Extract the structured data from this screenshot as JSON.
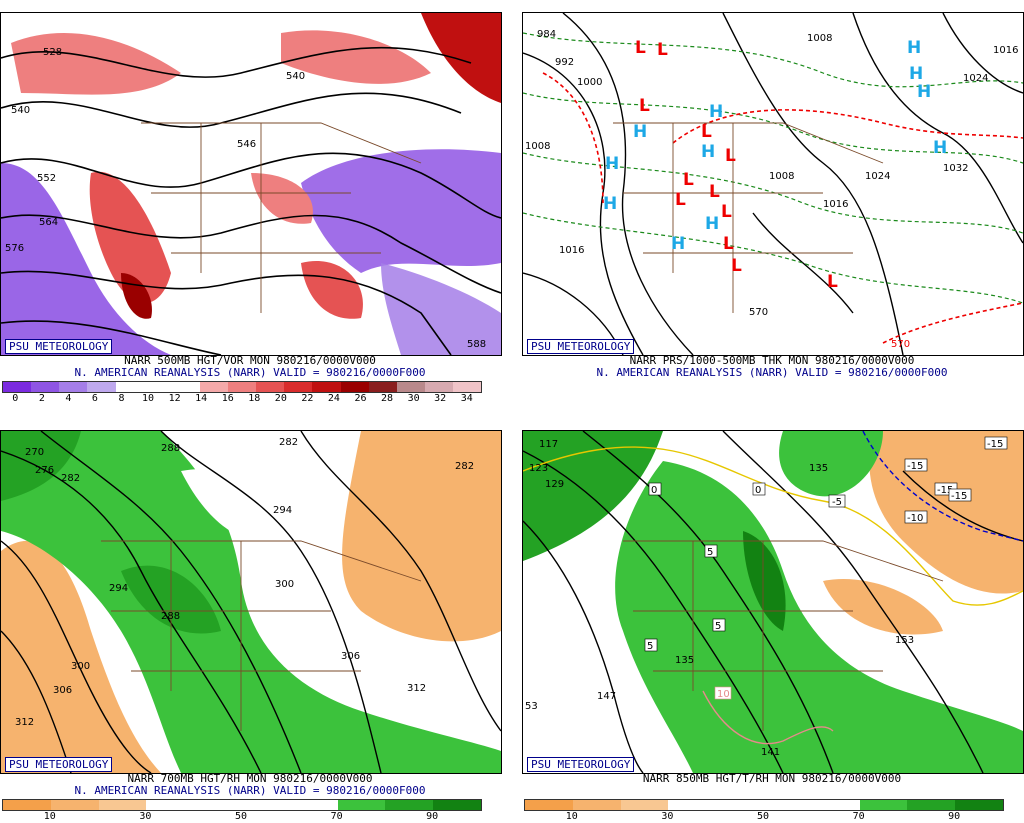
{
  "panels": [
    {
      "id": "500mb",
      "badge": "PSU METEOROLOGY",
      "title_line1": "NARR 500MB HGT/VOR MON 980216/0000V000",
      "title_line2": "N. AMERICAN REANALYSIS (NARR) VALID = 980216/0000F000",
      "colorbar": {
        "colors": [
          "#7b2be0",
          "#8f55e4",
          "#a57ee8",
          "#bfa9ee",
          "#ffffff",
          "#ffffff",
          "#ffffff",
          "#f4a9a9",
          "#ee7f7f",
          "#e55353",
          "#d92c2c",
          "#c01010",
          "#9a0000",
          "#8a1e1e",
          "#b9898b",
          "#d7aab0",
          "#f0c4c8"
        ],
        "ticks": [
          "0",
          "2",
          "4",
          "6",
          "8",
          "10",
          "12",
          "14",
          "16",
          "18",
          "20",
          "22",
          "24",
          "26",
          "28",
          "30",
          "32",
          "34"
        ]
      },
      "contour_labels": [
        "528",
        "540",
        "540",
        "552",
        "564",
        "576",
        "588",
        "546",
        "540"
      ]
    },
    {
      "id": "sfc",
      "badge": "PSU METEOROLOGY",
      "title_line1": "NARR PRS/1000-500MB THK MON 980216/0000V000",
      "title_line2": "N. AMERICAN REANALYSIS (NARR) VALID = 980216/0000F000",
      "contour_labels": [
        "984",
        "992",
        "1000",
        "1008",
        "1016",
        "1008",
        "1016",
        "1024",
        "1032",
        "1008",
        "1016",
        "1024",
        "1000",
        "570",
        "1008"
      ],
      "highs": [
        "H",
        "H",
        "H",
        "H",
        "H",
        "H",
        "H",
        "H",
        "H",
        "H",
        "H"
      ],
      "lows": [
        "L",
        "L",
        "L",
        "L",
        "L",
        "L",
        "L",
        "L",
        "L",
        "L",
        "L",
        "L"
      ]
    },
    {
      "id": "700mb",
      "badge": "PSU METEOROLOGY",
      "title_line1": "NARR 700MB HGT/RH MON 980216/0000V000",
      "title_line2": "N. AMERICAN REANALYSIS (NARR) VALID = 980216/0000F000",
      "colorbar": {
        "colors": [
          "#f4a04a",
          "#f6b36e",
          "#f8c792",
          "#ffffff",
          "#ffffff",
          "#ffffff",
          "#ffffff",
          "#3cc23c",
          "#24a224",
          "#128212"
        ],
        "ticks": [
          "10",
          "30",
          "50",
          "70",
          "90"
        ]
      },
      "contour_labels": [
        "270",
        "276",
        "282",
        "288",
        "282",
        "282",
        "294",
        "288",
        "294",
        "300",
        "306",
        "300",
        "306",
        "312",
        "312"
      ]
    },
    {
      "id": "850mb",
      "badge": "PSU METEOROLOGY",
      "title_line1": "NARR 850MB HGT/T/RH MON 980216/0000V000",
      "title_line2": "",
      "colorbar": {
        "colors": [
          "#f4a04a",
          "#f6b36e",
          "#f8c792",
          "#ffffff",
          "#ffffff",
          "#ffffff",
          "#ffffff",
          "#3cc23c",
          "#24a224",
          "#128212"
        ],
        "ticks": [
          "10",
          "30",
          "50",
          "70",
          "90"
        ]
      },
      "contour_labels": [
        "117",
        "123",
        "129",
        "135",
        "-15",
        "-15",
        "-15",
        "-15",
        "-10",
        "-5",
        "0",
        "5",
        "5",
        "5",
        "0",
        "135",
        "147",
        "141",
        "153",
        "53",
        "10",
        "135"
      ]
    }
  ]
}
